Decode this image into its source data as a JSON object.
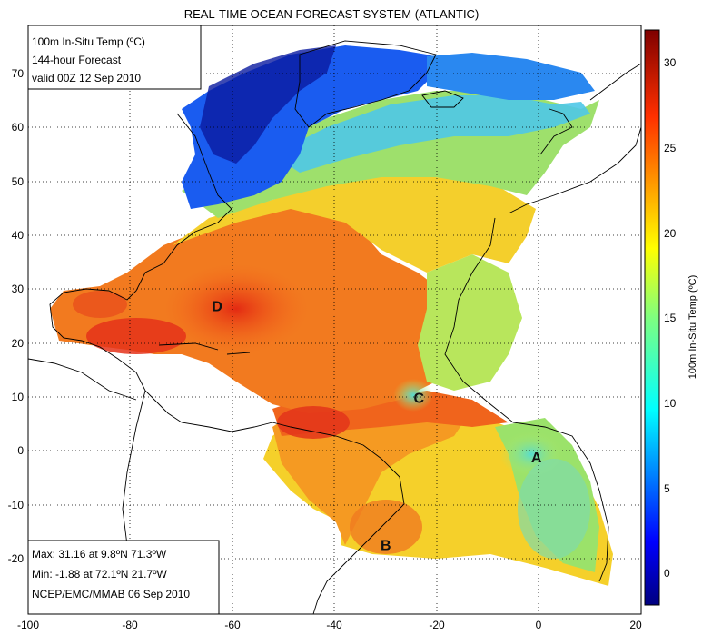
{
  "title": "REAL-TIME OCEAN FORECAST SYSTEM (ATLANTIC)",
  "info_box": {
    "line1": "100m In-Situ Temp (ºC)",
    "line2": "144-hour Forecast",
    "line3": "valid 00Z 12 Sep 2010"
  },
  "stats_box": {
    "max": "Max: 31.16 at 9.8ºN 71.3ºW",
    "min": "Min: -1.88 at 72.1ºN 21.7ºW",
    "source": "NCEP/EMC/MMAB 06 Sep 2010"
  },
  "x_ticks": [
    "-100",
    "-80",
    "-60",
    "-40",
    "-20",
    "0",
    "20"
  ],
  "y_ticks": [
    "-20",
    "-10",
    "0",
    "10",
    "20",
    "30",
    "40",
    "50",
    "60",
    "70"
  ],
  "colorbar": {
    "label": "100m In-Situ Temp (ºC)",
    "ticks": [
      "0",
      "5",
      "10",
      "15",
      "20",
      "25",
      "30"
    ],
    "colors": [
      "#00007f",
      "#0000ff",
      "#007fff",
      "#00ffff",
      "#7fff7f",
      "#ffff00",
      "#ff7f00",
      "#ff0000",
      "#7f0000"
    ]
  },
  "markers": [
    {
      "label": "A",
      "lon": -0.5,
      "lat": 0.3
    },
    {
      "label": "B",
      "lon": -30,
      "lat": -15.5
    },
    {
      "label": "C",
      "lon": -23.5,
      "lat": 11
    },
    {
      "label": "D",
      "lon": -63,
      "lat": 27.5
    }
  ],
  "map_extent": {
    "lon": [
      -100,
      20
    ],
    "lat": [
      -28,
      78
    ]
  }
}
